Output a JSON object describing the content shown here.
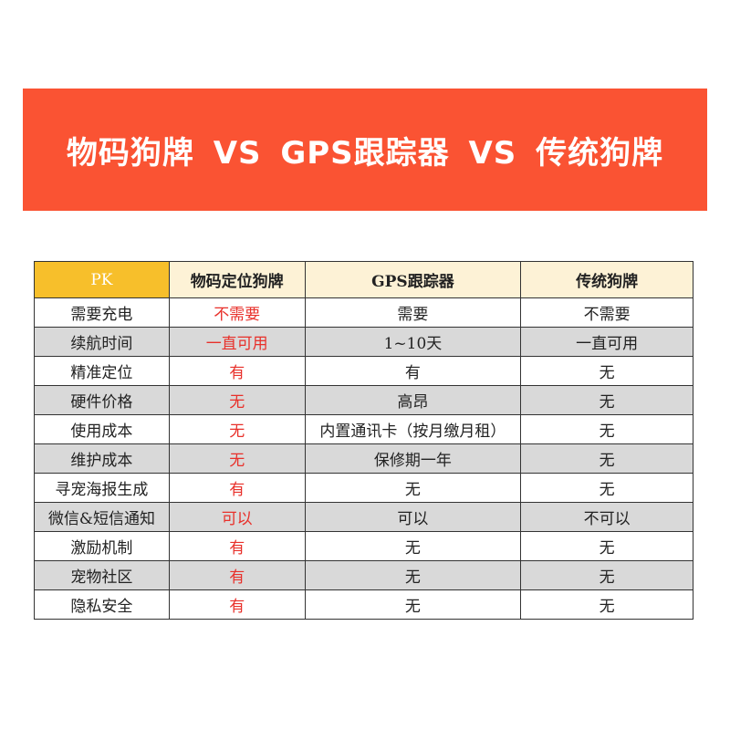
{
  "header": {
    "title": "物码狗牌 VS GPS跟踪器 VS 传统狗牌"
  },
  "table": {
    "columns": [
      "PK",
      "物码定位狗牌",
      "GPS跟踪器",
      "传统狗牌"
    ],
    "rows": [
      [
        "需要充电",
        "不需要",
        "需要",
        "不需要"
      ],
      [
        "续航时间",
        "一直可用",
        "1~10天",
        "一直可用"
      ],
      [
        "精准定位",
        "有",
        "有",
        "无"
      ],
      [
        "硬件价格",
        "无",
        "高昂",
        "无"
      ],
      [
        "使用成本",
        "无",
        "内置通讯卡（按月缴月租）",
        "无"
      ],
      [
        "维护成本",
        "无",
        "保修期一年",
        "无"
      ],
      [
        "寻宠海报生成",
        "有",
        "无",
        "无"
      ],
      [
        "微信&短信通知",
        "可以",
        "可以",
        "不可以"
      ],
      [
        "激励机制",
        "有",
        "无",
        "无"
      ],
      [
        "宠物社区",
        "有",
        "无",
        "无"
      ],
      [
        "隐私安全",
        "有",
        "无",
        "无"
      ]
    ]
  }
}
